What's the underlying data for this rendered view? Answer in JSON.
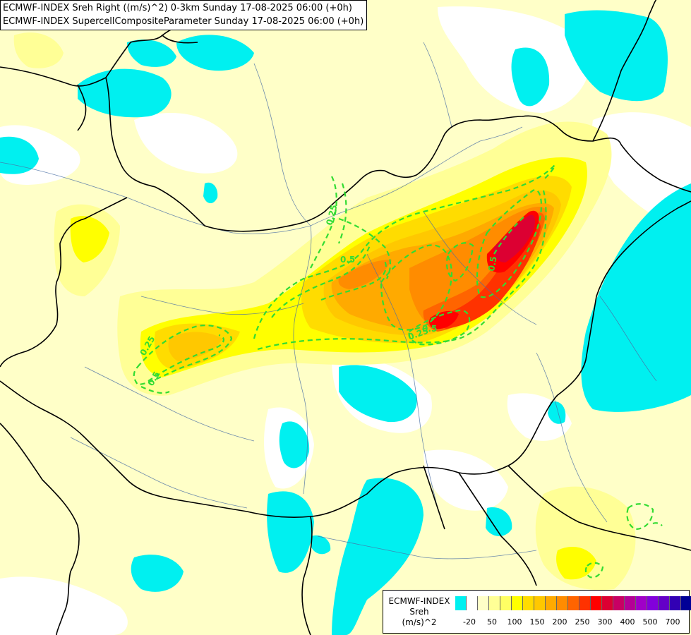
{
  "title_lines": [
    "ECMWF-INDEX Sreh Right ((m/s)^2) 0-3km Sunday 17-08-2025 06:00 (+0h)",
    "ECMWF-INDEX SupercellCompositeParameter Sunday 17-08-2025 06:00 (+0h)"
  ],
  "contour_labels": [
    "0.25",
    "0.5",
    "0.25",
    "0.5",
    "0.5",
    "0.25",
    "0.5"
  ],
  "legend": {
    "title_lines": [
      "ECMWF-INDEX",
      "Sreh",
      "(m/s)^2"
    ],
    "tick_labels": [
      "-20",
      "50",
      "100",
      "150",
      "200",
      "250",
      "300",
      "400",
      "500",
      "700"
    ],
    "colors": [
      "#00f0f0",
      "#ffffff",
      "#ffffc8",
      "#ffff96",
      "#ffff64",
      "#ffff00",
      "#ffdc00",
      "#ffc800",
      "#ffaa00",
      "#ff8c00",
      "#ff6400",
      "#ff3200",
      "#ff0000",
      "#dc0032",
      "#c80064",
      "#b40096",
      "#a000c8",
      "#8200dc",
      "#6400c8",
      "#3200b4",
      "#000096"
    ]
  },
  "colors": {
    "background_base": "#ffffc8",
    "low_values": "#00f0f0",
    "contour": "#32dc32"
  }
}
